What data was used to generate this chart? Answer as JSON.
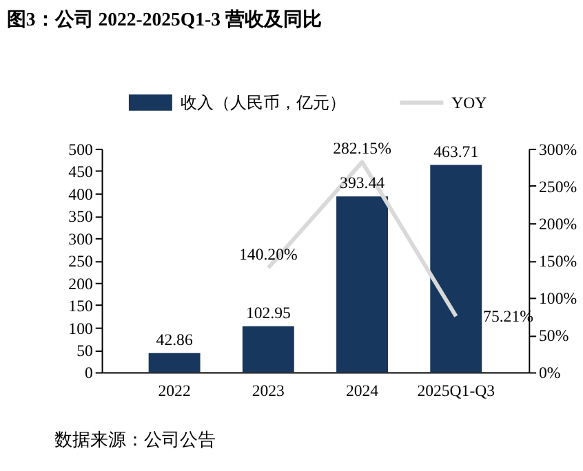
{
  "chart_data": {
    "type": "bar",
    "title": "图3：公司 2022-2025Q1-3 营收及同比",
    "categories": [
      "2022",
      "2023",
      "2024",
      "2025Q1-Q3"
    ],
    "series": [
      {
        "name": "收入（人民币，亿元）",
        "color": "#17375e",
        "values": [
          42.86,
          102.95,
          393.44,
          463.71
        ],
        "value_labels": [
          "42.86",
          "102.95",
          "393.44",
          "463.71"
        ]
      },
      {
        "name": "YOY",
        "type": "line",
        "axis": "y2",
        "color": "#d9d9d9",
        "values": [
          null,
          140.2,
          282.15,
          75.21
        ],
        "value_labels": [
          null,
          "140.20%",
          "282.15%",
          "75.21%"
        ]
      }
    ],
    "ylim": [
      0,
      500
    ],
    "yticks": [
      0,
      50,
      100,
      150,
      200,
      250,
      300,
      350,
      400,
      450,
      500
    ],
    "y2lim": [
      0,
      300
    ],
    "y2ticks": [
      {
        "value": 0,
        "label": "0%"
      },
      {
        "value": 50,
        "label": "50%"
      },
      {
        "value": 100,
        "label": "100%"
      },
      {
        "value": 150,
        "label": "150%"
      },
      {
        "value": 200,
        "label": "200%"
      },
      {
        "value": 250,
        "label": "250%"
      },
      {
        "value": 300,
        "label": "300%"
      }
    ],
    "grid": false,
    "legend": "top",
    "marker": "none",
    "annotations": [
      "数据来源：公司公告"
    ]
  }
}
